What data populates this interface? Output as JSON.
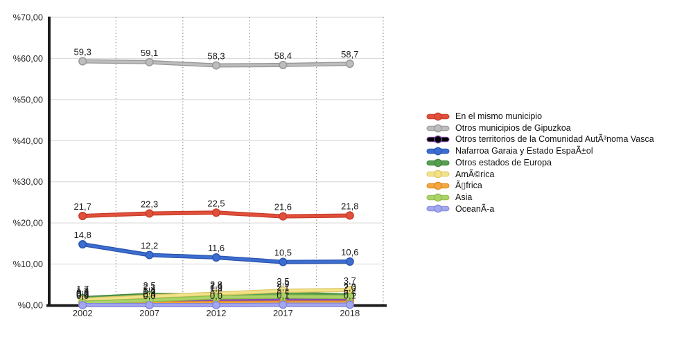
{
  "chart_data": {
    "type": "line",
    "title": "",
    "xlabel": "",
    "ylabel": "",
    "legend_position": "right",
    "grid": {
      "horizontal": true,
      "vertical": "dotted-at-band-edges"
    },
    "categories": [
      "2002",
      "2007",
      "2012",
      "2017",
      "2018"
    ],
    "y_axis": {
      "min": 0,
      "max": 70,
      "step": 10,
      "tick_labels": [
        "%0,00",
        "%10,00",
        "%20,00",
        "%30,00",
        "%40,00",
        "%50,00",
        "%60,00",
        "%70,00"
      ]
    },
    "value_label_decimal_separator": ",",
    "series": [
      {
        "name": "En el mismo municipio",
        "color": "#E2503C",
        "edge": "#C63D29",
        "values": [
          21.7,
          22.3,
          22.5,
          21.6,
          21.8
        ]
      },
      {
        "name": "Otros municipios de Gipuzkoa",
        "color": "#BDBDBD",
        "edge": "#989898",
        "values": [
          59.3,
          59.1,
          58.3,
          58.4,
          58.7
        ]
      },
      {
        "name": "Otros territorios de la Comunidad AutÃ³noma Vasca",
        "color": "#A express569C8",
        "edge": "#8A4BB0",
        "values": [
          0.8,
          0.9,
          1.0,
          1.1,
          1.2
        ]
      },
      {
        "name": "Nafarroa Garaia y Estado EspaÃ±ol",
        "color": "#3C6ED2",
        "edge": "#2C55AE",
        "values": [
          14.8,
          12.2,
          11.6,
          10.5,
          10.6
        ]
      },
      {
        "name": "Otros estados de Europa",
        "color": "#55A04E",
        "edge": "#418540",
        "values": [
          1.7,
          2.5,
          2.4,
          2.9,
          2.3
        ]
      },
      {
        "name": "AmÃ©rica",
        "color": "#F2E288",
        "edge": "#DCC765",
        "values": [
          1.3,
          2.1,
          2.8,
          3.5,
          3.7
        ]
      },
      {
        "name": "Ã▯frica",
        "color": "#F4A640",
        "edge": "#DE8B26",
        "values": [
          0.3,
          0.4,
          0.5,
          0.6,
          0.6
        ]
      },
      {
        "name": "Asia",
        "color": "#ABD36A",
        "edge": "#90BC4B",
        "values": [
          0.6,
          1.2,
          1.9,
          2.1,
          2.0
        ]
      },
      {
        "name": "OceanÃ-a",
        "color": "#A3A7EF",
        "edge": "#8488DC",
        "values": [
          0.0,
          0.0,
          0.0,
          0.1,
          0.1
        ]
      }
    ]
  }
}
